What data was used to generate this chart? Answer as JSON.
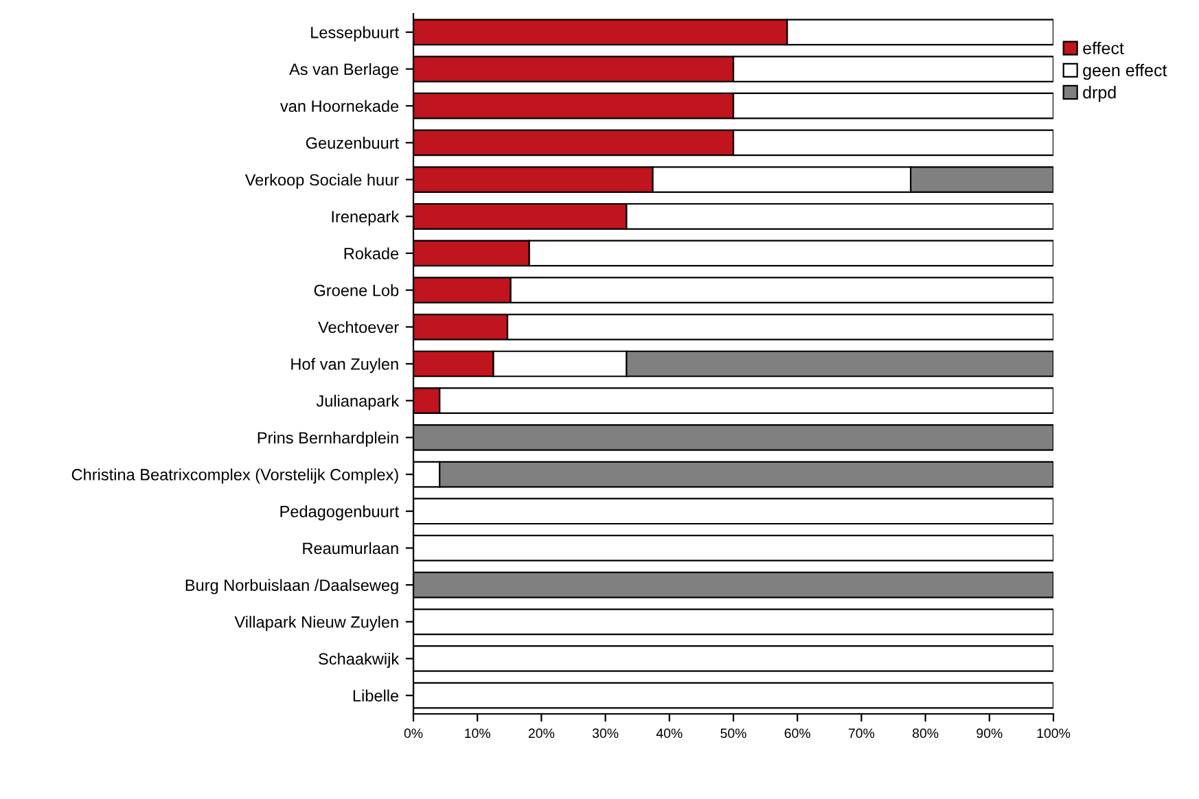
{
  "chart_data": {
    "type": "bar",
    "orientation": "horizontal",
    "stacked": true,
    "categories": [
      "Lessepbuurt",
      "As van Berlage",
      "van Hoornekade",
      "Geuzenbuurt",
      "Verkoop Sociale huur",
      "Irenepark",
      "Rokade",
      "Groene Lob",
      "Vechtoever",
      "Hof van Zuylen",
      "Julianapark",
      "Prins Bernhardplein",
      "Christina Beatrixcomplex (Vorstelijk Complex)",
      "Pedagogenbuurt",
      "Reaumurlaan",
      "Burg Norbuislaan /Daalseweg",
      "Villapark Nieuw Zuylen",
      "Schaakwijk",
      "Libelle"
    ],
    "series": [
      {
        "name": "effect",
        "color": "#c0141e",
        "values": [
          58.4,
          50,
          50,
          50,
          37.4,
          33.3,
          18.1,
          15.2,
          14.7,
          12.5,
          4.1,
          null,
          null,
          null,
          null,
          null,
          null,
          null,
          null
        ]
      },
      {
        "name": "geen effect",
        "color": "#ffffff",
        "values": [
          41.6,
          50,
          50,
          50,
          40.3,
          66.7,
          81.9,
          84.8,
          85.3,
          20.8,
          95.9,
          null,
          4.1,
          100,
          100,
          null,
          100,
          100,
          100
        ]
      },
      {
        "name": "drpd",
        "color": "#808080",
        "values": [
          null,
          null,
          null,
          null,
          22.3,
          null,
          null,
          null,
          null,
          66.7,
          null,
          100,
          95.9,
          null,
          null,
          100,
          null,
          null,
          null
        ]
      }
    ],
    "xlim": [
      0,
      100
    ],
    "xticks": [
      {
        "value": 0,
        "label": "0%"
      },
      {
        "value": 10,
        "label": "10%"
      },
      {
        "value": 20,
        "label": "20%"
      },
      {
        "value": 30,
        "label": "30%"
      },
      {
        "value": 40,
        "label": "40%"
      },
      {
        "value": 50,
        "label": "50%"
      },
      {
        "value": 60,
        "label": "60%"
      },
      {
        "value": 70,
        "label": "70%"
      },
      {
        "value": 80,
        "label": "80%"
      },
      {
        "value": 90,
        "label": "90%"
      },
      {
        "value": 100,
        "label": "100%"
      }
    ],
    "grid": false,
    "legend": "top right"
  }
}
